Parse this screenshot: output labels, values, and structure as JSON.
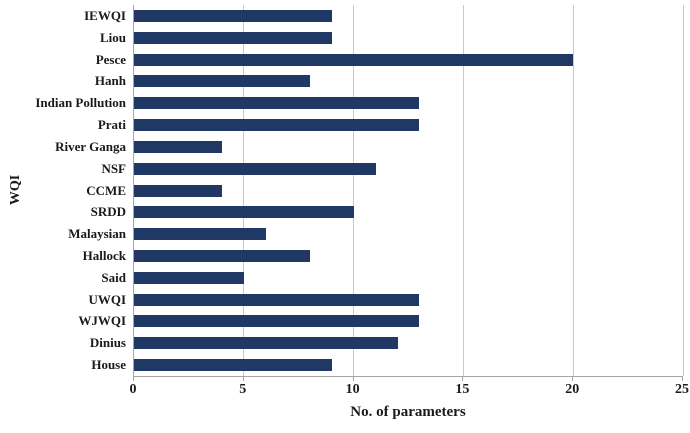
{
  "chart_data": {
    "type": "bar",
    "orientation": "horizontal",
    "title": "",
    "xlabel": "No. of parameters",
    "ylabel": "WQI",
    "categories": [
      "IEWQI",
      "Liou",
      "Pesce",
      "Hanh",
      "Indian Pollution",
      "Prati",
      "River Ganga",
      "NSF",
      "CCME",
      "SRDD",
      "Malaysian",
      "Hallock",
      "Said",
      "UWQI",
      "WJWQI",
      "Dinius",
      "House"
    ],
    "values": [
      9,
      9,
      20,
      8,
      13,
      13,
      4,
      11,
      4,
      10,
      6,
      8,
      5,
      13,
      13,
      12,
      9
    ],
    "xlim": [
      0,
      25
    ],
    "xticks": [
      0,
      5,
      10,
      15,
      20,
      25
    ],
    "grid": "vertical-gridlines-on",
    "legend": "none",
    "colors": {
      "bar": "#1f3864",
      "gridline": "#c9c9c9",
      "axis": "#a6a6a6",
      "text": "#1a1a1a",
      "background": "#ffffff"
    }
  }
}
